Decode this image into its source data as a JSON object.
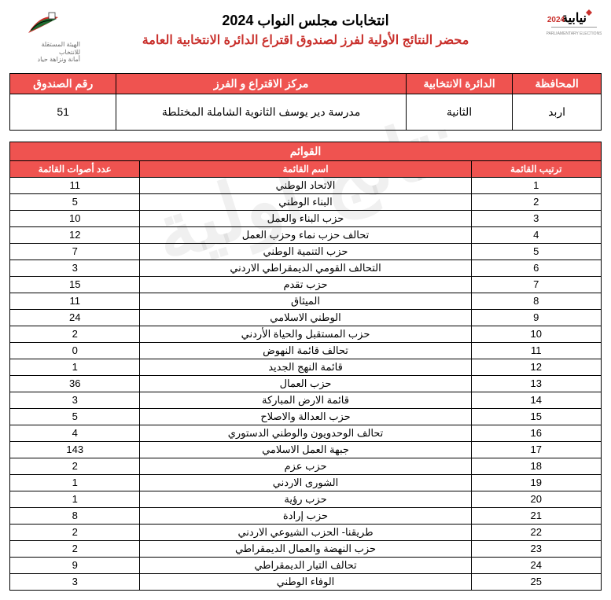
{
  "header": {
    "title_main": "انتخابات مجلس النواب 2024",
    "title_sub": "محضر النتائج الأولية لفرز لصندوق اقتراع الدائرة الانتخابية العامة",
    "right_logo_lines": [
      "الهيئة المستقلة",
      "للانتخاب",
      "أمانة ونزاهة حياد"
    ],
    "left_logo_year": "2024",
    "left_logo_sub": "PARLIAMENTARY ELECTIONS",
    "left_logo_word": "نيابية"
  },
  "watermark": "نتائج أولية",
  "info": {
    "headers": [
      "المحافظة",
      "الدائرة الانتخابية",
      "مركز الاقتراع و الفرز",
      "رقم الصندوق"
    ],
    "values": [
      "اربد",
      "الثانية",
      "مدرسة دير يوسف الثانوية الشاملة المختلطة",
      "51"
    ]
  },
  "lists_section_title": "القوائم",
  "list_headers": [
    "ترتيب القائمة",
    "اسم القائمة",
    "عدد أصوات القائمة"
  ],
  "rows": [
    {
      "rank": "1",
      "name": "الاتحاد الوطني",
      "votes": "11"
    },
    {
      "rank": "2",
      "name": "البناء الوطني",
      "votes": "5"
    },
    {
      "rank": "3",
      "name": "حزب البناء والعمل",
      "votes": "10"
    },
    {
      "rank": "4",
      "name": "تحالف حزب نماء وحزب العمل",
      "votes": "12"
    },
    {
      "rank": "5",
      "name": "حزب التنمية الوطني",
      "votes": "7"
    },
    {
      "rank": "6",
      "name": "التحالف القومي الديمقراطي الاردني",
      "votes": "3"
    },
    {
      "rank": "7",
      "name": "حزب تقدم",
      "votes": "15"
    },
    {
      "rank": "8",
      "name": "الميثاق",
      "votes": "11"
    },
    {
      "rank": "9",
      "name": "الوطني الاسلامي",
      "votes": "24"
    },
    {
      "rank": "10",
      "name": "حزب المستقبل والحياة الأردني",
      "votes": "2"
    },
    {
      "rank": "11",
      "name": "تحالف قائمة النهوض",
      "votes": "0"
    },
    {
      "rank": "12",
      "name": "قائمة النهج الجديد",
      "votes": "1"
    },
    {
      "rank": "13",
      "name": "حزب العمال",
      "votes": "36"
    },
    {
      "rank": "14",
      "name": "قائمة الارض المباركة",
      "votes": "3"
    },
    {
      "rank": "15",
      "name": "حزب العدالة والاصلاح",
      "votes": "5"
    },
    {
      "rank": "16",
      "name": "تحالف الوحدويون والوطني الدستوري",
      "votes": "4"
    },
    {
      "rank": "17",
      "name": "جبهة العمل الاسلامي",
      "votes": "143"
    },
    {
      "rank": "18",
      "name": "حزب عزم",
      "votes": "2"
    },
    {
      "rank": "19",
      "name": "الشورى الاردني",
      "votes": "1"
    },
    {
      "rank": "20",
      "name": "حزب رؤية",
      "votes": "1"
    },
    {
      "rank": "21",
      "name": "حزب إرادة",
      "votes": "8"
    },
    {
      "rank": "22",
      "name": "طريقنا- الحزب الشيوعي الاردني",
      "votes": "2"
    },
    {
      "rank": "23",
      "name": "حزب النهضة والعمال الديمقراطي",
      "votes": "2"
    },
    {
      "rank": "24",
      "name": "تحالف التيار الديمقراطي",
      "votes": "9"
    },
    {
      "rank": "25",
      "name": "الوفاء الوطني",
      "votes": "3"
    }
  ]
}
